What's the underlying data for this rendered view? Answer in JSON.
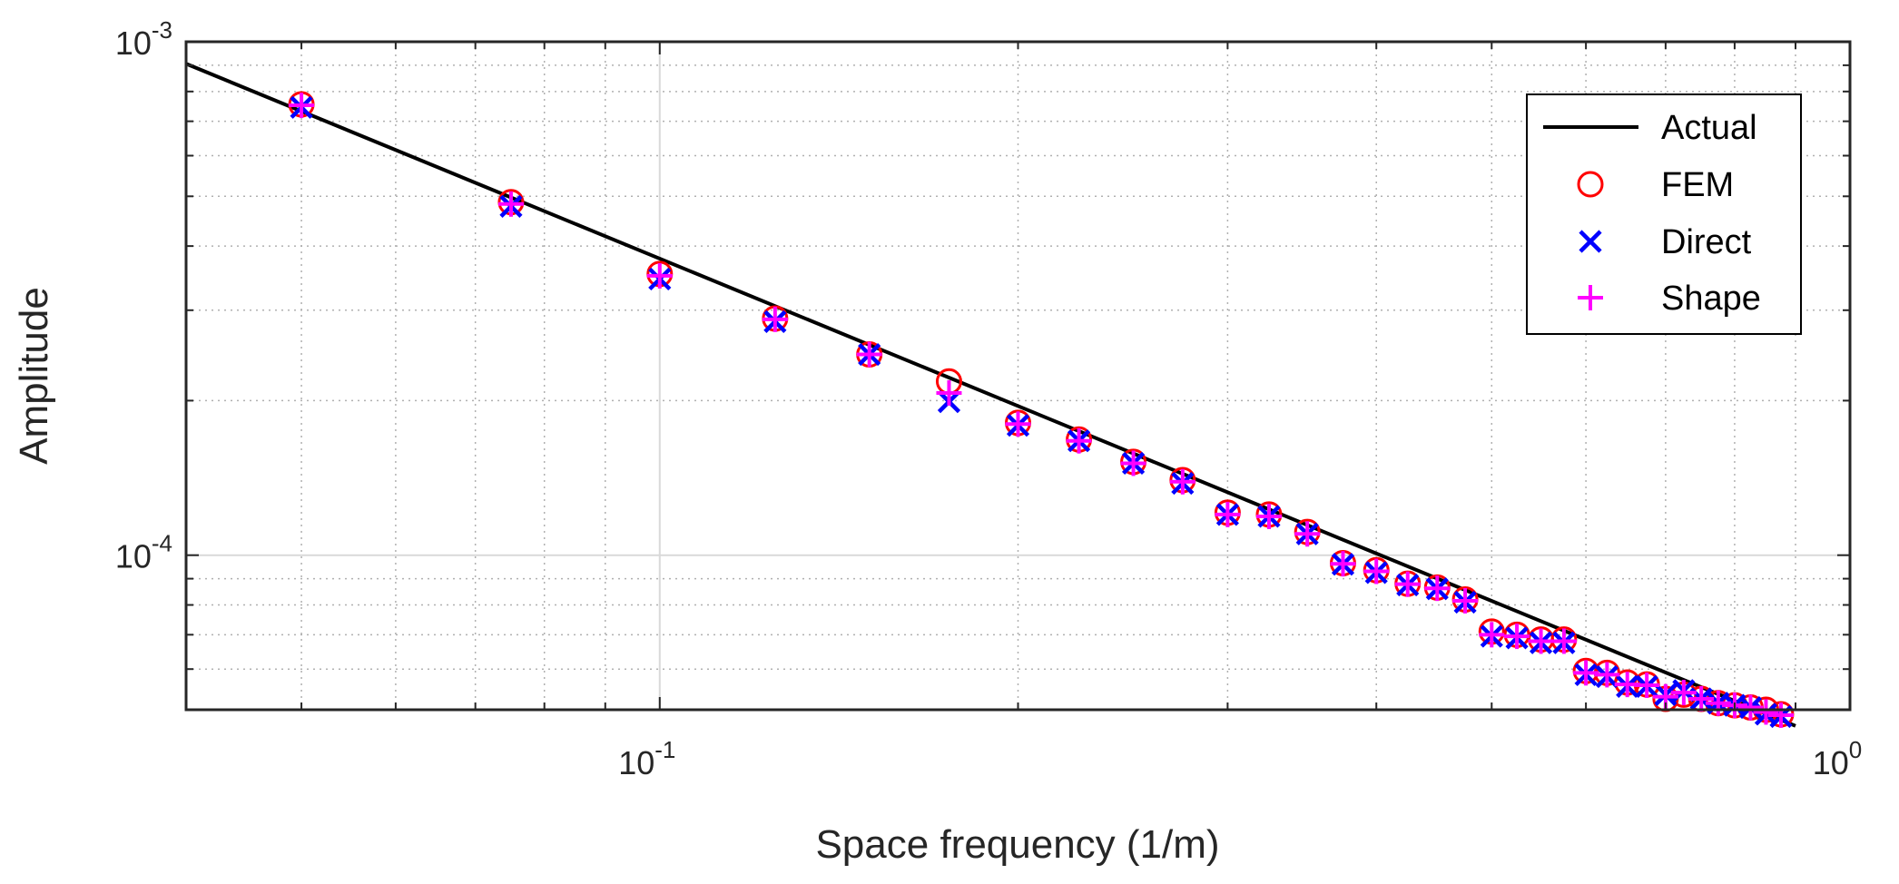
{
  "chart_data": {
    "type": "scatter",
    "title": "",
    "xlabel": "Space frequency (1/m)",
    "ylabel": "Amplitude",
    "xscale": "log",
    "yscale": "log",
    "xlim": [
      0.04,
      1.0
    ],
    "ylim": [
      5e-05,
      0.001
    ],
    "grid": true,
    "legend_position": "top-right",
    "x_ticks": [
      {
        "base": "10",
        "exp": "-1",
        "value": 0.1
      },
      {
        "base": "10",
        "exp": "0",
        "value": 1.0
      }
    ],
    "y_ticks": [
      {
        "base": "10",
        "exp": "-4",
        "value": 0.0001
      },
      {
        "base": "10",
        "exp": "-3",
        "value": 0.001
      }
    ],
    "series": [
      {
        "name": "Actual",
        "style": "line",
        "color": "#000000",
        "x": [
          0.04,
          0.9
        ],
        "y": [
          0.000906,
          4.65e-05
        ]
      },
      {
        "name": "FEM",
        "style": "circle",
        "color": "#ff0000",
        "x": [
          0.05,
          0.075,
          0.1,
          0.125,
          0.15,
          0.175,
          0.2,
          0.225,
          0.25,
          0.275,
          0.3,
          0.325,
          0.35,
          0.375,
          0.4,
          0.425,
          0.45,
          0.475,
          0.5,
          0.525,
          0.55,
          0.575,
          0.6,
          0.625,
          0.65,
          0.675,
          0.7,
          0.725,
          0.75,
          0.775,
          0.8,
          0.825,
          0.85,
          0.875
        ],
        "y": [
          0.000755,
          0.000487,
          0.000353,
          0.000289,
          0.000246,
          0.000218,
          0.000181,
          0.000168,
          0.000152,
          0.00014,
          0.000121,
          0.00012,
          0.000111,
          9.65e-05,
          9.35e-05,
          8.8e-05,
          8.65e-05,
          8.2e-05,
          7.1e-05,
          7e-05,
          6.85e-05,
          6.85e-05,
          5.95e-05,
          5.9e-05,
          5.65e-05,
          5.6e-05,
          5.25e-05,
          5.35e-05,
          5.25e-05,
          5.15e-05,
          5.1e-05,
          5.05e-05,
          5e-05,
          4.9e-05
        ]
      },
      {
        "name": "Direct",
        "style": "x",
        "color": "#0000ff",
        "x": [
          0.05,
          0.075,
          0.1,
          0.125,
          0.15,
          0.175,
          0.2,
          0.225,
          0.25,
          0.275,
          0.3,
          0.325,
          0.35,
          0.375,
          0.4,
          0.425,
          0.45,
          0.475,
          0.5,
          0.525,
          0.55,
          0.575,
          0.6,
          0.625,
          0.65,
          0.675,
          0.7,
          0.725,
          0.75,
          0.775,
          0.8,
          0.825,
          0.85,
          0.875
        ],
        "y": [
          0.000745,
          0.000478,
          0.000345,
          0.000285,
          0.000246,
          0.000199,
          0.000179,
          0.000167,
          0.000151,
          0.000138,
          0.00012,
          0.000119,
          0.00011,
          9.6e-05,
          9.25e-05,
          8.75e-05,
          8.6e-05,
          8.1e-05,
          6.95e-05,
          6.9e-05,
          6.75e-05,
          6.75e-05,
          5.85e-05,
          5.8e-05,
          5.55e-05,
          5.55e-05,
          5.35e-05,
          5.45e-05,
          5.25e-05,
          5.15e-05,
          5.1e-05,
          5.05e-05,
          4.9e-05,
          4.85e-05
        ]
      },
      {
        "name": "Shape",
        "style": "plus",
        "color": "#ff00ff",
        "x": [
          0.05,
          0.075,
          0.1,
          0.125,
          0.15,
          0.175,
          0.2,
          0.225,
          0.25,
          0.275,
          0.3,
          0.325,
          0.35,
          0.375,
          0.4,
          0.425,
          0.45,
          0.475,
          0.5,
          0.525,
          0.55,
          0.575,
          0.6,
          0.625,
          0.65,
          0.675,
          0.7,
          0.725,
          0.75,
          0.775,
          0.8,
          0.825,
          0.85,
          0.875
        ],
        "y": [
          0.000752,
          0.000483,
          0.00035,
          0.000288,
          0.000246,
          0.000207,
          0.00018,
          0.000167,
          0.000151,
          0.000139,
          0.00012,
          0.000119,
          0.00011,
          9.62e-05,
          9.3e-05,
          8.78e-05,
          8.62e-05,
          8.15e-05,
          7e-05,
          6.95e-05,
          6.8e-05,
          6.8e-05,
          5.9e-05,
          5.85e-05,
          5.6e-05,
          5.58e-05,
          5.3e-05,
          5.4e-05,
          5.25e-05,
          5.15e-05,
          5.1e-05,
          5.05e-05,
          4.95e-05,
          4.88e-05
        ]
      }
    ]
  }
}
